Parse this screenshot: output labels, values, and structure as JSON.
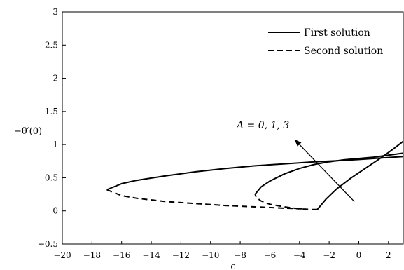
{
  "chart_data": {
    "type": "line",
    "title": "",
    "xlabel": "c",
    "ylabel": "−θ′(0)",
    "xlim": [
      -20,
      3
    ],
    "ylim": [
      -0.5,
      3
    ],
    "x_ticks": [
      "−20",
      "−18",
      "−16",
      "−14",
      "−12",
      "−10",
      "−8",
      "−6",
      "−4",
      "−2",
      "0",
      "2"
    ],
    "y_ticks": [
      "−0.5",
      "0",
      "0.5",
      "1",
      "1.5",
      "2",
      "2.5",
      "3"
    ],
    "grid": false,
    "legend": {
      "placement": "top-right",
      "entries": [
        {
          "label": "First solution",
          "style": "solid"
        },
        {
          "label": "Second solution",
          "style": "dashed"
        }
      ]
    },
    "annotation": {
      "text": "A = 0, 1, 3",
      "arrow_from": [
        -0.3,
        0.14
      ],
      "arrow_to": [
        -4.3,
        1.07
      ]
    },
    "series": [
      {
        "style": "solid",
        "points": [
          [
            -2.8,
            0.02
          ],
          [
            -2.2,
            0.18
          ],
          [
            -1.5,
            0.33
          ],
          [
            -0.5,
            0.5
          ],
          [
            0.5,
            0.65
          ],
          [
            1.5,
            0.8
          ],
          [
            2.3,
            0.93
          ],
          [
            3.0,
            1.05
          ]
        ]
      },
      {
        "style": "dashed",
        "points": [
          [
            -2.8,
            0.02
          ],
          [
            -3.2,
            0.02
          ],
          [
            -4.0,
            0.03
          ],
          [
            -5.0,
            0.06
          ],
          [
            -6.0,
            0.1
          ],
          [
            -6.6,
            0.15
          ],
          [
            -6.9,
            0.2
          ],
          [
            -7.0,
            0.25
          ]
        ]
      },
      {
        "style": "solid",
        "points": [
          [
            -7.0,
            0.25
          ],
          [
            -6.6,
            0.36
          ],
          [
            -6.0,
            0.45
          ],
          [
            -5.0,
            0.56
          ],
          [
            -4.0,
            0.64
          ],
          [
            -3.0,
            0.7
          ],
          [
            -2.0,
            0.74
          ],
          [
            -1.0,
            0.77
          ],
          [
            0.0,
            0.79
          ],
          [
            1.0,
            0.81
          ],
          [
            2.0,
            0.84
          ],
          [
            3.0,
            0.87
          ]
        ]
      },
      {
        "style": "dashed",
        "points": [
          [
            -17.0,
            0.32
          ],
          [
            -16.0,
            0.23
          ],
          [
            -15.0,
            0.19
          ],
          [
            -13.0,
            0.14
          ],
          [
            -11.0,
            0.11
          ],
          [
            -9.0,
            0.08
          ],
          [
            -7.0,
            0.06
          ],
          [
            -5.0,
            0.04
          ],
          [
            -3.6,
            0.03
          ]
        ]
      },
      {
        "style": "solid",
        "points": [
          [
            -17.0,
            0.32
          ],
          [
            -16.0,
            0.41
          ],
          [
            -15.0,
            0.46
          ],
          [
            -13.0,
            0.53
          ],
          [
            -11.0,
            0.59
          ],
          [
            -9.0,
            0.64
          ],
          [
            -7.0,
            0.68
          ],
          [
            -5.0,
            0.71
          ],
          [
            -3.0,
            0.74
          ],
          [
            -1.0,
            0.76
          ],
          [
            1.0,
            0.79
          ],
          [
            3.0,
            0.82
          ]
        ]
      }
    ]
  }
}
